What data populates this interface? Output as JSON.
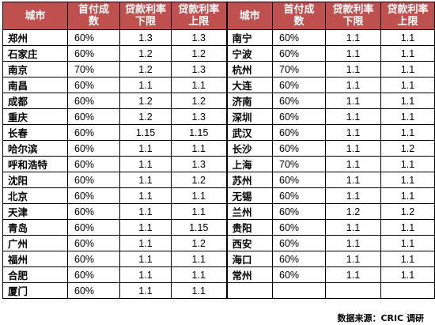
{
  "headers": [
    "城市",
    "首付成数",
    "贷款利率下限",
    "贷款利率上限",
    "城市",
    "首付成数",
    "贷款利率下限",
    "贷款利率上限"
  ],
  "header_lines": [
    [
      "城市"
    ],
    [
      "首付成",
      "数"
    ],
    [
      "贷款利率",
      "下限"
    ],
    [
      "贷款利率",
      "上限"
    ],
    [
      "城市"
    ],
    [
      "首付成",
      "数"
    ],
    [
      "贷款利率",
      "下限"
    ],
    [
      "贷款利率",
      "上限"
    ]
  ],
  "left_rows": [
    {
      "city": "郑州",
      "down_payment": "60%",
      "rate_low": "1.3",
      "rate_high": "1.3"
    },
    {
      "city": "石家庄",
      "down_payment": "60%",
      "rate_low": "1.2",
      "rate_high": "1.2"
    },
    {
      "city": "南京",
      "down_payment": "70%",
      "rate_low": "1.2",
      "rate_high": "1.3"
    },
    {
      "city": "南昌",
      "down_payment": "60%",
      "rate_low": "1.1",
      "rate_high": "1.1"
    },
    {
      "city": "成都",
      "down_payment": "60%",
      "rate_low": "1.2",
      "rate_high": "1.2"
    },
    {
      "city": "重庆",
      "down_payment": "60%",
      "rate_low": "1.2",
      "rate_high": "1.3"
    },
    {
      "city": "长春",
      "down_payment": "60%",
      "rate_low": "1.15",
      "rate_high": "1.15"
    },
    {
      "city": "哈尔滨",
      "down_payment": "60%",
      "rate_low": "1.1",
      "rate_high": "1.1"
    },
    {
      "city": "呼和浩特",
      "down_payment": "60%",
      "rate_low": "1.1",
      "rate_high": "1.3"
    },
    {
      "city": "沈阳",
      "down_payment": "60%",
      "rate_low": "1.1",
      "rate_high": "1.2"
    },
    {
      "city": "北京",
      "down_payment": "60%",
      "rate_low": "1.1",
      "rate_high": "1.1"
    },
    {
      "city": "天津",
      "down_payment": "60%",
      "rate_low": "1.1",
      "rate_high": "1.1"
    },
    {
      "city": "青岛",
      "down_payment": "60%",
      "rate_low": "1.1",
      "rate_high": "1.15"
    },
    {
      "city": "广州",
      "down_payment": "60%",
      "rate_low": "1.1",
      "rate_high": "1.2"
    },
    {
      "city": "福州",
      "down_payment": "60%",
      "rate_low": "1.1",
      "rate_high": "1.1"
    },
    {
      "city": "合肥",
      "down_payment": "60%",
      "rate_low": "1.1",
      "rate_high": "1.1"
    },
    {
      "city": "厦门",
      "down_payment": "60%",
      "rate_low": "1.1",
      "rate_high": "1.1"
    }
  ],
  "right_rows": [
    {
      "city": "南宁",
      "down_payment": "60%",
      "rate_low": "1.1",
      "rate_high": "1.1"
    },
    {
      "city": "宁波",
      "down_payment": "60%",
      "rate_low": "1.1",
      "rate_high": "1.1"
    },
    {
      "city": "杭州",
      "down_payment": "70%",
      "rate_low": "1.1",
      "rate_high": "1.1"
    },
    {
      "city": "大连",
      "down_payment": "60%",
      "rate_low": "1.1",
      "rate_high": "1.1"
    },
    {
      "city": "济南",
      "down_payment": "60%",
      "rate_low": "1.1",
      "rate_high": "1.1"
    },
    {
      "city": "深圳",
      "down_payment": "60%",
      "rate_low": "1.1",
      "rate_high": "1.1"
    },
    {
      "city": "武汉",
      "down_payment": "60%",
      "rate_low": "1.1",
      "rate_high": "1.1"
    },
    {
      "city": "长沙",
      "down_payment": "60%",
      "rate_low": "1.1",
      "rate_high": "1.2"
    },
    {
      "city": "上海",
      "down_payment": "70%",
      "rate_low": "1.1",
      "rate_high": "1.1"
    },
    {
      "city": "苏州",
      "down_payment": "60%",
      "rate_low": "1.1",
      "rate_high": "1.1"
    },
    {
      "city": "无锡",
      "down_payment": "60%",
      "rate_low": "1.1",
      "rate_high": "1.1"
    },
    {
      "city": "兰州",
      "down_payment": "60%",
      "rate_low": "1.2",
      "rate_high": "1.2"
    },
    {
      "city": "贵阳",
      "down_payment": "60%",
      "rate_low": "1.1",
      "rate_high": "1.1"
    },
    {
      "city": "西安",
      "down_payment": "60%",
      "rate_low": "1.1",
      "rate_high": "1.1"
    },
    {
      "city": "海口",
      "down_payment": "60%",
      "rate_low": "1.1",
      "rate_high": "1.1"
    },
    {
      "city": "常州",
      "down_payment": "60%",
      "rate_low": "1.1",
      "rate_high": "1.1"
    },
    {
      "city": "",
      "down_payment": "",
      "rate_low": "",
      "rate_high": ""
    }
  ],
  "source": "数据来源：CRIC 调研",
  "colors": {
    "header_bg": "#c0504d",
    "header_text": "#ffffff",
    "border": "#000000"
  }
}
